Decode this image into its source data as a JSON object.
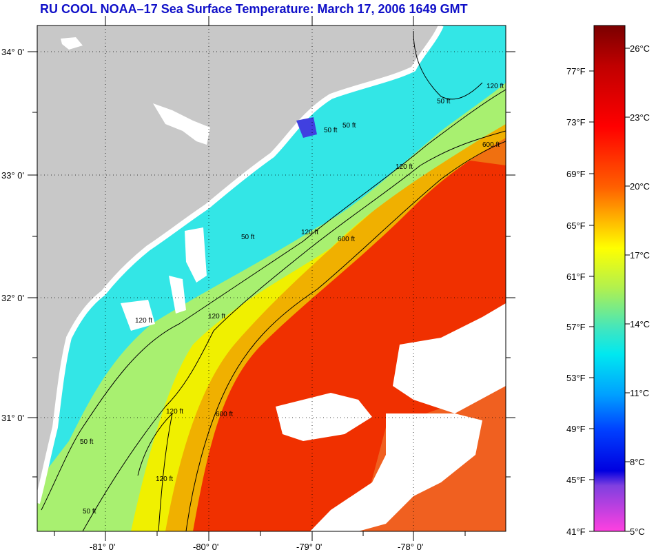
{
  "title": "RU COOL  NOAA–17  Sea Surface Temperature:  March 17, 2006 1649 GMT",
  "map": {
    "lat_labels": [
      "34° 0'",
      "33° 0'",
      "32° 0'",
      "31° 0'"
    ],
    "lon_labels": [
      "-81° 0'",
      "-80° 0'",
      "-79° 0'",
      "-78° 0'"
    ],
    "contour_labels": [
      "50 ft",
      "120 ft",
      "600 ft",
      "120 ft",
      "50 ft",
      "120 ft",
      "600 ft",
      "120 ft",
      "50 ft",
      "600 ft",
      "120 ft",
      "50 ft",
      "50 ft",
      "120 ft",
      "120 ft",
      "50 ft"
    ],
    "colors": {
      "land": "#c8c8c8",
      "cloud": "#ffffff",
      "coastal_cool": "#33e6e6",
      "mid_shelf": "#99f080",
      "shelf_edge": "#f0f000",
      "gulf_stream": "#f03000",
      "warm_offshore": "#f05010",
      "contour": "#000000"
    }
  },
  "colorbar": {
    "fahrenheit_labels": [
      "77°F",
      "73°F",
      "69°F",
      "65°F",
      "61°F",
      "57°F",
      "53°F",
      "49°F",
      "45°F",
      "41°F"
    ],
    "celsius_labels": [
      "26°C",
      "23°C",
      "20°C",
      "17°C",
      "14°C",
      "11°C",
      "8°C",
      "5°C"
    ],
    "gradient_colors": [
      "#7a0000",
      "#c00000",
      "#ff0000",
      "#ff6000",
      "#ffb000",
      "#ffff00",
      "#b0f050",
      "#40e6c0",
      "#00e8f0",
      "#00a0ff",
      "#0040ff",
      "#0000e0",
      "#8040e0",
      "#ff40e0"
    ]
  }
}
